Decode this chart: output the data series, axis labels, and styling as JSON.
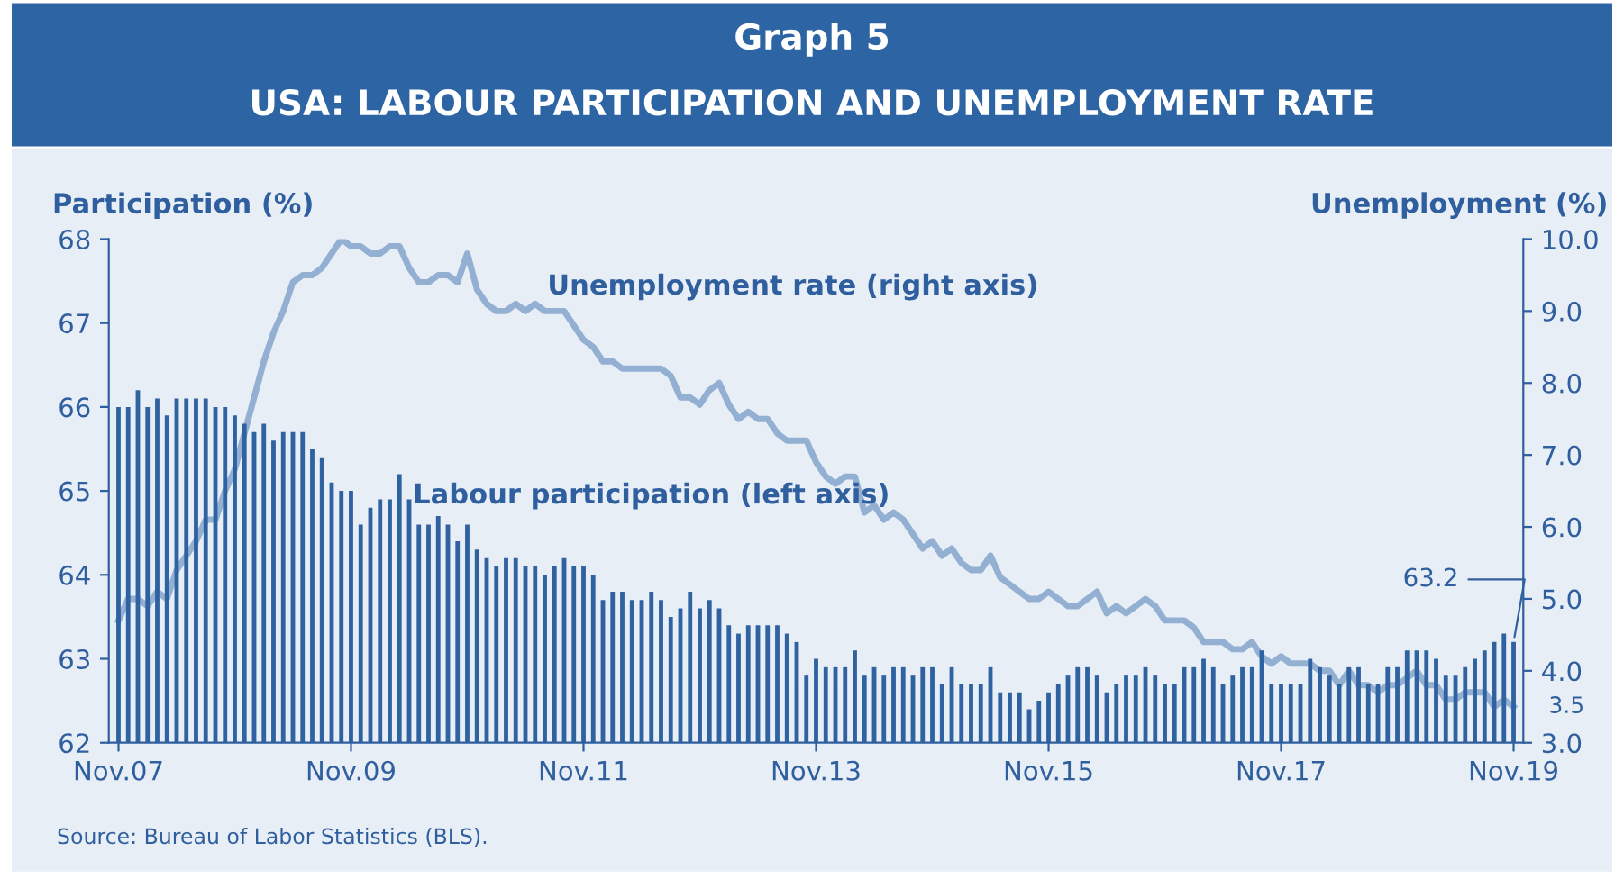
{
  "chart_data": {
    "type": "bar",
    "title": "Graph 5",
    "subtitle": "USA: LABOUR PARTICIPATION AND UNEMPLOYMENT RATE",
    "ylabel": "Participation (%)",
    "y2label": "Unemployment (%)",
    "annotations": [
      "Source: Bureau of Labor Statistics (BLS)."
    ],
    "categories": [
      "Nov.07",
      null,
      null,
      null,
      null,
      null,
      null,
      null,
      null,
      null,
      null,
      null,
      null,
      null,
      null,
      null,
      null,
      null,
      null,
      null,
      null,
      null,
      null,
      null,
      "Nov.09",
      null,
      null,
      null,
      null,
      null,
      null,
      null,
      null,
      null,
      null,
      null,
      null,
      null,
      null,
      null,
      null,
      null,
      null,
      null,
      null,
      null,
      null,
      null,
      "Nov.11",
      null,
      null,
      null,
      null,
      null,
      null,
      null,
      null,
      null,
      null,
      null,
      null,
      null,
      null,
      null,
      null,
      null,
      null,
      null,
      null,
      null,
      null,
      null,
      "Nov.13",
      null,
      null,
      null,
      null,
      null,
      null,
      null,
      null,
      null,
      null,
      null,
      null,
      null,
      null,
      null,
      null,
      null,
      null,
      null,
      null,
      null,
      null,
      null,
      "Nov.15",
      null,
      null,
      null,
      null,
      null,
      null,
      null,
      null,
      null,
      null,
      null,
      null,
      null,
      null,
      null,
      null,
      null,
      null,
      null,
      null,
      null,
      null,
      null,
      "Nov.17",
      null,
      null,
      null,
      null,
      null,
      null,
      null,
      null,
      null,
      null,
      null,
      null,
      null,
      null,
      null,
      null,
      null,
      null,
      null,
      null,
      null,
      null,
      null,
      "Nov.19"
    ],
    "series": [
      {
        "name": "Labour participation (left axis)",
        "color": "#2f62a1",
        "values": [
          66.0,
          66.0,
          66.2,
          66.0,
          66.1,
          65.9,
          66.1,
          66.1,
          66.1,
          66.1,
          66.0,
          66.0,
          65.9,
          65.8,
          65.7,
          65.8,
          65.6,
          65.7,
          65.7,
          65.7,
          65.5,
          65.4,
          65.1,
          65.0,
          65.0,
          64.6,
          64.8,
          64.9,
          64.9,
          65.2,
          64.9,
          64.6,
          64.6,
          64.7,
          64.6,
          64.4,
          64.6,
          64.3,
          64.2,
          64.1,
          64.2,
          64.2,
          64.1,
          64.1,
          64.0,
          64.1,
          64.2,
          64.1,
          64.1,
          64.0,
          63.7,
          63.8,
          63.8,
          63.7,
          63.7,
          63.8,
          63.7,
          63.5,
          63.6,
          63.8,
          63.6,
          63.7,
          63.6,
          63.4,
          63.3,
          63.4,
          63.4,
          63.4,
          63.4,
          63.3,
          63.2,
          62.8,
          63.0,
          62.9,
          62.9,
          62.9,
          63.1,
          62.8,
          62.9,
          62.8,
          62.9,
          62.9,
          62.8,
          62.9,
          62.9,
          62.7,
          62.9,
          62.7,
          62.7,
          62.7,
          62.9,
          62.6,
          62.6,
          62.6,
          62.4,
          62.5,
          62.6,
          62.7,
          62.8,
          62.9,
          62.9,
          62.8,
          62.6,
          62.7,
          62.8,
          62.8,
          62.9,
          62.8,
          62.7,
          62.7,
          62.9,
          62.9,
          63.0,
          62.9,
          62.7,
          62.8,
          62.9,
          62.9,
          63.1,
          62.7,
          62.7,
          62.7,
          62.7,
          63.0,
          62.9,
          62.8,
          62.7,
          62.9,
          62.9,
          62.7,
          62.7,
          62.9,
          62.9,
          63.1,
          63.1,
          63.1,
          63.0,
          62.8,
          62.8,
          62.9,
          63.0,
          63.1,
          63.2,
          63.3,
          63.2
        ],
        "value_labels": [
          null,
          null,
          null,
          null,
          null,
          null,
          null,
          null,
          null,
          null,
          null,
          null,
          null,
          null,
          null,
          null,
          null,
          null,
          null,
          null,
          null,
          null,
          null,
          null,
          null,
          null,
          null,
          null,
          null,
          null,
          null,
          null,
          null,
          null,
          null,
          null,
          null,
          null,
          null,
          null,
          null,
          null,
          null,
          null,
          null,
          null,
          null,
          null,
          null,
          null,
          null,
          null,
          null,
          null,
          null,
          null,
          null,
          null,
          null,
          null,
          null,
          null,
          null,
          null,
          null,
          null,
          null,
          null,
          null,
          null,
          null,
          null,
          null,
          null,
          null,
          null,
          null,
          null,
          null,
          null,
          null,
          null,
          null,
          null,
          null,
          null,
          null,
          null,
          null,
          null,
          null,
          null,
          null,
          null,
          null,
          null,
          null,
          null,
          null,
          null,
          null,
          null,
          null,
          null,
          null,
          null,
          null,
          null,
          null,
          null,
          null,
          null,
          null,
          null,
          null,
          null,
          null,
          null,
          null,
          null,
          null,
          null,
          null,
          null,
          null,
          null,
          null,
          null,
          null,
          null,
          null,
          null,
          null,
          null,
          null,
          null,
          null,
          null,
          null,
          null,
          null,
          null,
          null,
          null,
          "63.2"
        ]
      },
      {
        "name": "Unemployment rate (right axis)",
        "type": "line",
        "axis": "y2",
        "color": "#93b0d3",
        "values": [
          4.7,
          5.0,
          5.0,
          4.9,
          5.1,
          5.0,
          5.4,
          5.6,
          5.8,
          6.1,
          6.1,
          6.5,
          6.8,
          7.3,
          7.8,
          8.3,
          8.7,
          9.0,
          9.4,
          9.5,
          9.5,
          9.6,
          9.8,
          10.0,
          9.9,
          9.9,
          9.8,
          9.8,
          9.9,
          9.9,
          9.6,
          9.4,
          9.4,
          9.5,
          9.5,
          9.4,
          9.8,
          9.3,
          9.1,
          9.0,
          9.0,
          9.1,
          9.0,
          9.1,
          9.0,
          9.0,
          9.0,
          8.8,
          8.6,
          8.5,
          8.3,
          8.3,
          8.2,
          8.2,
          8.2,
          8.2,
          8.2,
          8.1,
          7.8,
          7.8,
          7.7,
          7.9,
          8.0,
          7.7,
          7.5,
          7.6,
          7.5,
          7.5,
          7.3,
          7.2,
          7.2,
          7.2,
          6.9,
          6.7,
          6.6,
          6.7,
          6.7,
          6.2,
          6.3,
          6.1,
          6.2,
          6.1,
          5.9,
          5.7,
          5.8,
          5.6,
          5.7,
          5.5,
          5.4,
          5.4,
          5.6,
          5.3,
          5.2,
          5.1,
          5.0,
          5.0,
          5.1,
          5.0,
          4.9,
          4.9,
          5.0,
          5.1,
          4.8,
          4.9,
          4.8,
          4.9,
          5.0,
          4.9,
          4.7,
          4.7,
          4.7,
          4.6,
          4.4,
          4.4,
          4.4,
          4.3,
          4.3,
          4.4,
          4.2,
          4.1,
          4.2,
          4.1,
          4.1,
          4.1,
          4.0,
          4.0,
          3.8,
          4.0,
          3.8,
          3.8,
          3.7,
          3.8,
          3.8,
          3.9,
          4.0,
          3.8,
          3.8,
          3.6,
          3.6,
          3.7,
          3.7,
          3.7,
          3.5,
          3.6,
          3.5
        ],
        "value_labels": [
          null,
          null,
          null,
          null,
          null,
          null,
          null,
          null,
          null,
          null,
          null,
          null,
          null,
          null,
          null,
          null,
          null,
          null,
          null,
          null,
          null,
          null,
          null,
          null,
          null,
          null,
          null,
          null,
          null,
          null,
          null,
          null,
          null,
          null,
          null,
          null,
          null,
          null,
          null,
          null,
          null,
          null,
          null,
          null,
          null,
          null,
          null,
          null,
          null,
          null,
          null,
          null,
          null,
          null,
          null,
          null,
          null,
          null,
          null,
          null,
          null,
          null,
          null,
          null,
          null,
          null,
          null,
          null,
          null,
          null,
          null,
          null,
          null,
          null,
          null,
          null,
          null,
          null,
          null,
          null,
          null,
          null,
          null,
          null,
          null,
          null,
          null,
          null,
          null,
          null,
          null,
          null,
          null,
          null,
          null,
          null,
          null,
          null,
          null,
          null,
          null,
          null,
          null,
          null,
          null,
          null,
          null,
          null,
          null,
          null,
          null,
          null,
          null,
          null,
          null,
          null,
          null,
          null,
          null,
          null,
          null,
          null,
          null,
          null,
          null,
          null,
          null,
          null,
          null,
          null,
          null,
          null,
          null,
          null,
          null,
          null,
          null,
          null,
          null,
          null,
          null,
          null,
          null,
          null,
          "3.5"
        ]
      }
    ],
    "ylim": [
      62,
      68
    ],
    "yticks": [
      62,
      63,
      64,
      65,
      66,
      67,
      68
    ],
    "y2lim": [
      3.0,
      10.0
    ],
    "y2ticks": [
      {
        "value": 3.0,
        "label": "3.0"
      },
      {
        "value": 4.0,
        "label": "4.0"
      },
      {
        "value": 5.0,
        "label": "5.0"
      },
      {
        "value": 6.0,
        "label": "6.0"
      },
      {
        "value": 7.0,
        "label": "7.0"
      },
      {
        "value": 8.0,
        "label": "8.0"
      },
      {
        "value": 9.0,
        "label": "9.0"
      },
      {
        "value": 10.0,
        "label": "10.0"
      }
    ],
    "grid": false,
    "legend": false
  }
}
